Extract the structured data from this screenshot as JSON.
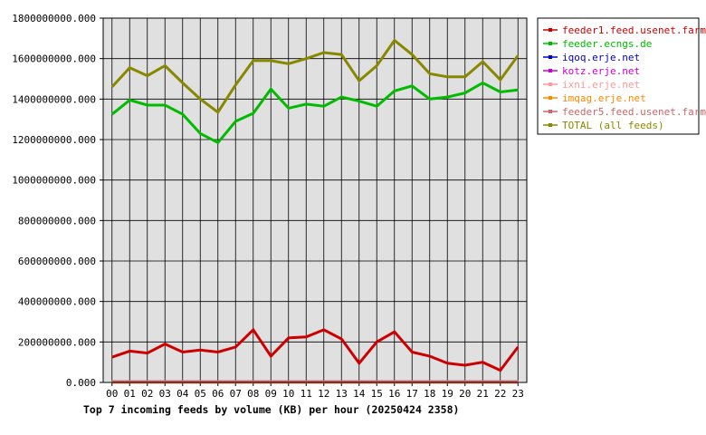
{
  "chart_data": {
    "type": "line",
    "title": "Top 7 incoming feeds by volume (KB) per hour (20250424 2358)",
    "x": [
      "00",
      "01",
      "02",
      "03",
      "04",
      "05",
      "06",
      "07",
      "08",
      "09",
      "10",
      "11",
      "12",
      "13",
      "14",
      "15",
      "16",
      "17",
      "18",
      "19",
      "20",
      "21",
      "22",
      "23"
    ],
    "ylim": [
      0,
      1800000000
    ],
    "yticks": [
      0,
      200000000,
      400000000,
      600000000,
      800000000,
      1000000000,
      1200000000,
      1400000000,
      1600000000,
      1800000000
    ],
    "ytick_labels": [
      "0.000",
      "200000000.000",
      "400000000.000",
      "600000000.000",
      "800000000.000",
      "1000000000.000",
      "1200000000.000",
      "1400000000.000",
      "1600000000.000",
      "1800000000.000"
    ],
    "grid": true,
    "legend_position": "right",
    "background": "#e0e0e0",
    "series": [
      {
        "name": "feeder1.feed.usenet.farm",
        "color": "#cc0000",
        "values": [
          125000000,
          155000000,
          145000000,
          190000000,
          150000000,
          160000000,
          150000000,
          175000000,
          260000000,
          130000000,
          220000000,
          225000000,
          260000000,
          215000000,
          95000000,
          200000000,
          250000000,
          150000000,
          130000000,
          95000000,
          85000000,
          100000000,
          60000000,
          175000000
        ]
      },
      {
        "name": "feeder.ecngs.de",
        "color": "#00bb00",
        "values": [
          1325000000,
          1395000000,
          1370000000,
          1370000000,
          1325000000,
          1230000000,
          1185000000,
          1290000000,
          1330000000,
          1450000000,
          1355000000,
          1375000000,
          1365000000,
          1410000000,
          1390000000,
          1365000000,
          1440000000,
          1465000000,
          1400000000,
          1410000000,
          1430000000,
          1480000000,
          1435000000,
          1445000000
        ]
      },
      {
        "name": "iqoq.erje.net",
        "color": "#0000cc",
        "values": [
          2000000,
          2000000,
          2000000,
          2000000,
          2000000,
          2000000,
          2000000,
          2000000,
          2000000,
          2000000,
          2000000,
          2000000,
          2000000,
          2000000,
          2000000,
          2000000,
          2000000,
          2000000,
          2000000,
          2000000,
          2000000,
          2000000,
          2000000,
          2000000
        ]
      },
      {
        "name": "kotz.erje.net",
        "color": "#cc00cc",
        "values": [
          2000000,
          2000000,
          2000000,
          2000000,
          2000000,
          2000000,
          2000000,
          2000000,
          2000000,
          2000000,
          2000000,
          2000000,
          2000000,
          2000000,
          2000000,
          2000000,
          2000000,
          2000000,
          2000000,
          2000000,
          2000000,
          2000000,
          2000000,
          2000000
        ]
      },
      {
        "name": "ixni.erje.net",
        "color": "#ff9999",
        "values": [
          3000000,
          3000000,
          3000000,
          3000000,
          3000000,
          3000000,
          3000000,
          3000000,
          3000000,
          3000000,
          3000000,
          3000000,
          3000000,
          3000000,
          3000000,
          3000000,
          3000000,
          3000000,
          3000000,
          3000000,
          3000000,
          3000000,
          3000000,
          3000000
        ]
      },
      {
        "name": "imqag.erje.net",
        "color": "#ff8800",
        "values": [
          2000000,
          2000000,
          2000000,
          2000000,
          2000000,
          2000000,
          2000000,
          2000000,
          2000000,
          2000000,
          2000000,
          2000000,
          2000000,
          2000000,
          2000000,
          2000000,
          2000000,
          2000000,
          2000000,
          2000000,
          2000000,
          2000000,
          2000000,
          2000000
        ]
      },
      {
        "name": "feeder5.feed.usenet.farm",
        "color": "#cc6666",
        "values": [
          4000000,
          4000000,
          4000000,
          4000000,
          4000000,
          4000000,
          4000000,
          4000000,
          4000000,
          4000000,
          4000000,
          4000000,
          4000000,
          4000000,
          4000000,
          4000000,
          4000000,
          4000000,
          4000000,
          4000000,
          4000000,
          4000000,
          4000000,
          4000000
        ]
      },
      {
        "name": "TOTAL (all feeds)",
        "color": "#888800",
        "values": [
          1460000000,
          1555000000,
          1515000000,
          1565000000,
          1480000000,
          1400000000,
          1335000000,
          1470000000,
          1590000000,
          1590000000,
          1575000000,
          1600000000,
          1630000000,
          1620000000,
          1490000000,
          1565000000,
          1690000000,
          1620000000,
          1525000000,
          1510000000,
          1510000000,
          1585000000,
          1495000000,
          1615000000
        ]
      }
    ]
  }
}
